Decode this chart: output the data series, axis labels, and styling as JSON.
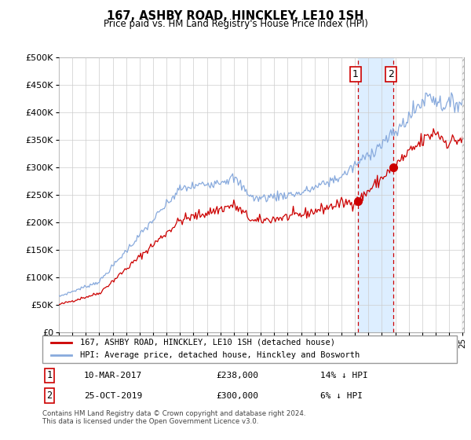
{
  "title": "167, ASHBY ROAD, HINCKLEY, LE10 1SH",
  "subtitle": "Price paid vs. HM Land Registry's House Price Index (HPI)",
  "ylim": [
    0,
    500000
  ],
  "yticks": [
    0,
    50000,
    100000,
    150000,
    200000,
    250000,
    300000,
    350000,
    400000,
    450000,
    500000
  ],
  "ytick_labels": [
    "£0",
    "£50K",
    "£100K",
    "£150K",
    "£200K",
    "£250K",
    "£300K",
    "£350K",
    "£400K",
    "£450K",
    "£500K"
  ],
  "house_color": "#cc0000",
  "hpi_color": "#88aadd",
  "house_label": "167, ASHBY ROAD, HINCKLEY, LE10 1SH (detached house)",
  "hpi_label": "HPI: Average price, detached house, Hinckley and Bosworth",
  "transaction1_date": "10-MAR-2017",
  "transaction1_price": 238000,
  "transaction1_info": "14% ↓ HPI",
  "transaction2_date": "25-OCT-2019",
  "transaction2_price": 300000,
  "transaction2_info": "6% ↓ HPI",
  "footer": "Contains HM Land Registry data © Crown copyright and database right 2024.\nThis data is licensed under the Open Government Licence v3.0.",
  "bg_color": "#ffffff",
  "grid_color": "#cccccc",
  "highlight_box_color": "#ddeeff",
  "highlight_x1": 2017.2,
  "highlight_x2": 2019.85,
  "transaction1_x": 2017.2,
  "transaction2_x": 2019.85,
  "marker1_y": 238000,
  "marker2_y": 300000,
  "xlim_left": 1995.4,
  "xlim_right": 2025.1
}
